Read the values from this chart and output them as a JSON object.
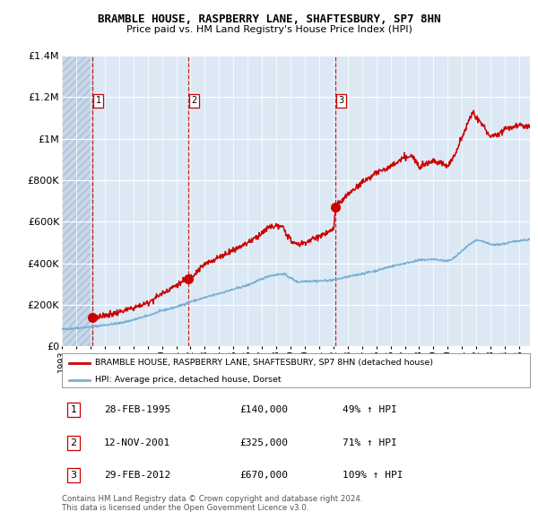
{
  "title": "BRAMBLE HOUSE, RASPBERRY LANE, SHAFTESBURY, SP7 8HN",
  "subtitle": "Price paid vs. HM Land Registry's House Price Index (HPI)",
  "hpi_label": "HPI: Average price, detached house, Dorset",
  "property_label": "BRAMBLE HOUSE, RASPBERRY LANE, SHAFTESBURY, SP7 8HN (detached house)",
  "footer1": "Contains HM Land Registry data © Crown copyright and database right 2024.",
  "footer2": "This data is licensed under the Open Government Licence v3.0.",
  "transactions": [
    {
      "num": 1,
      "date": "28-FEB-1995",
      "price": 140000,
      "pct": "49%",
      "date_dec": 1995.16
    },
    {
      "num": 2,
      "date": "12-NOV-2001",
      "price": 325000,
      "pct": "71%",
      "date_dec": 2001.87
    },
    {
      "num": 3,
      "date": "29-FEB-2012",
      "price": 670000,
      "pct": "109%",
      "date_dec": 2012.16
    }
  ],
  "hpi_color": "#7bafd4",
  "property_color": "#cc0000",
  "vline_color": "#cc0000",
  "bg_color": "#dce9f5",
  "hatch_color": "#c8d8ea",
  "grid_color": "#ffffff",
  "ylim": [
    0,
    1400000
  ],
  "yticks": [
    0,
    200000,
    400000,
    600000,
    800000,
    1000000,
    1200000,
    1400000
  ],
  "ytick_labels": [
    "£0",
    "£200K",
    "£400K",
    "£600K",
    "£800K",
    "£1M",
    "£1.2M",
    "£1.4M"
  ],
  "xstart": 1993.0,
  "xend": 2025.75
}
